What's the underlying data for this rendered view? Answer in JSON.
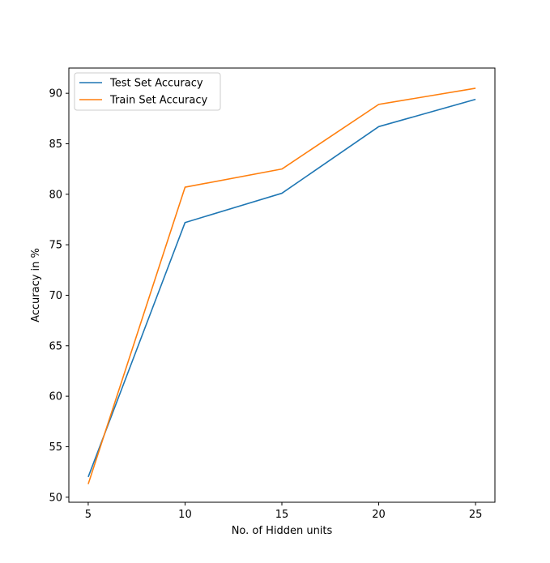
{
  "chart_data": {
    "type": "line",
    "title": "",
    "xlabel": "No. of Hidden units",
    "ylabel": "Accuracy in %",
    "x": [
      5,
      10,
      15,
      20,
      25
    ],
    "xlim": [
      4,
      26
    ],
    "ylim": [
      49.5,
      92.5
    ],
    "xticks": [
      5,
      10,
      15,
      20,
      25
    ],
    "yticks": [
      50,
      55,
      60,
      65,
      70,
      75,
      80,
      85,
      90
    ],
    "grid": false,
    "legend_position": "top-left",
    "series": [
      {
        "name": "Test Set Accuracy",
        "color": "#1f77b4",
        "values": [
          52.0,
          77.2,
          80.1,
          86.7,
          89.4
        ]
      },
      {
        "name": "Train Set Accuracy",
        "color": "#ff7f0e",
        "values": [
          51.3,
          80.7,
          82.5,
          88.9,
          90.5
        ]
      }
    ]
  }
}
